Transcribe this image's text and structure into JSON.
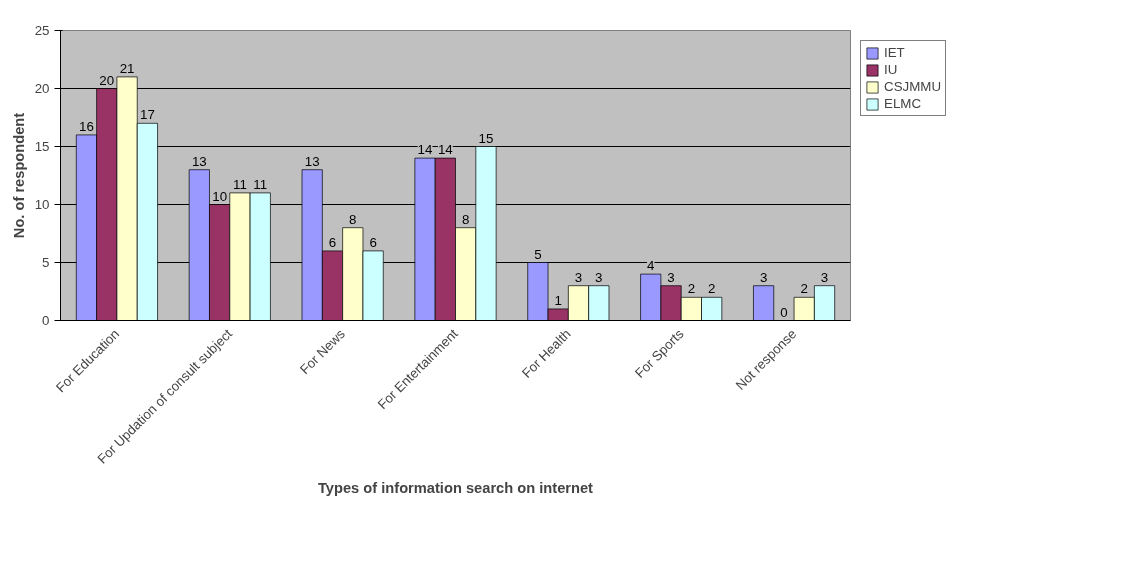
{
  "chart_data": {
    "type": "bar",
    "xlabel": "Types of information search on internet",
    "ylabel": "No. of respondent",
    "categories": [
      "For Education",
      "For Updation of consult subject",
      "For News",
      "For Entertainment",
      "For Health",
      "For Sports",
      "Not response"
    ],
    "series": [
      {
        "name": "IET",
        "color": "#9999ff",
        "values": [
          16,
          13,
          13,
          14,
          5,
          4,
          3
        ]
      },
      {
        "name": "IU",
        "color": "#993366",
        "values": [
          20,
          10,
          6,
          14,
          1,
          3,
          0
        ]
      },
      {
        "name": "CSJMMU",
        "color": "#ffffcc",
        "values": [
          21,
          11,
          8,
          8,
          3,
          2,
          2
        ]
      },
      {
        "name": "ELMC",
        "color": "#ccffff",
        "values": [
          17,
          11,
          6,
          15,
          3,
          2,
          3
        ]
      }
    ],
    "ylim": [
      0,
      25
    ],
    "yticks": [
      0,
      5,
      10,
      15,
      20,
      25
    ],
    "grid": "y",
    "legend": "right",
    "data_labels": true
  }
}
